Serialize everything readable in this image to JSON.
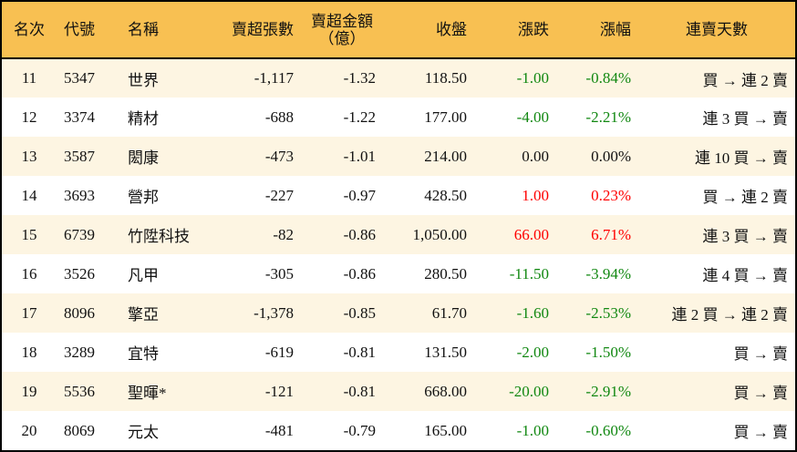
{
  "colors": {
    "header_bg": "#F8C052",
    "row_alt_bg": "#FDF5E2",
    "up": "#FF0000",
    "down": "#118811"
  },
  "headers": {
    "rank": "名次",
    "code": "代號",
    "name": "名稱",
    "shares": "賣超張數",
    "amount": "賣超金額",
    "amount_unit": "（億）",
    "close": "收盤",
    "change": "漲跌",
    "pct": "漲幅",
    "streak": "連賣天數"
  },
  "rows": [
    {
      "rank": "11",
      "code": "5347",
      "name": "世界",
      "shares": "-1,117",
      "amount": "-1.32",
      "close": "118.50",
      "change": "-1.00",
      "pct": "-0.84%",
      "dir": "down",
      "streak": "買 → 連 2 賣"
    },
    {
      "rank": "12",
      "code": "3374",
      "name": "精材",
      "shares": "-688",
      "amount": "-1.22",
      "close": "177.00",
      "change": "-4.00",
      "pct": "-2.21%",
      "dir": "down",
      "streak": "連 3 買 → 賣"
    },
    {
      "rank": "13",
      "code": "3587",
      "name": "閎康",
      "shares": "-473",
      "amount": "-1.01",
      "close": "214.00",
      "change": "0.00",
      "pct": "0.00%",
      "dir": "flat",
      "streak": "連 10 買 → 賣"
    },
    {
      "rank": "14",
      "code": "3693",
      "name": "營邦",
      "shares": "-227",
      "amount": "-0.97",
      "close": "428.50",
      "change": "1.00",
      "pct": "0.23%",
      "dir": "up",
      "streak": "買 → 連 2 賣"
    },
    {
      "rank": "15",
      "code": "6739",
      "name": "竹陞科技",
      "shares": "-82",
      "amount": "-0.86",
      "close": "1,050.00",
      "change": "66.00",
      "pct": "6.71%",
      "dir": "up",
      "streak": "連 3 買 → 賣"
    },
    {
      "rank": "16",
      "code": "3526",
      "name": "凡甲",
      "shares": "-305",
      "amount": "-0.86",
      "close": "280.50",
      "change": "-11.50",
      "pct": "-3.94%",
      "dir": "down",
      "streak": "連 4 買 → 賣"
    },
    {
      "rank": "17",
      "code": "8096",
      "name": "擎亞",
      "shares": "-1,378",
      "amount": "-0.85",
      "close": "61.70",
      "change": "-1.60",
      "pct": "-2.53%",
      "dir": "down",
      "streak": "連 2 買 → 連 2 賣"
    },
    {
      "rank": "18",
      "code": "3289",
      "name": "宜特",
      "shares": "-619",
      "amount": "-0.81",
      "close": "131.50",
      "change": "-2.00",
      "pct": "-1.50%",
      "dir": "down",
      "streak": "買 → 賣"
    },
    {
      "rank": "19",
      "code": "5536",
      "name": "聖暉*",
      "shares": "-121",
      "amount": "-0.81",
      "close": "668.00",
      "change": "-20.00",
      "pct": "-2.91%",
      "dir": "down",
      "streak": "買 → 賣"
    },
    {
      "rank": "20",
      "code": "8069",
      "name": "元太",
      "shares": "-481",
      "amount": "-0.79",
      "close": "165.00",
      "change": "-1.00",
      "pct": "-0.60%",
      "dir": "down",
      "streak": "買 → 賣"
    }
  ]
}
